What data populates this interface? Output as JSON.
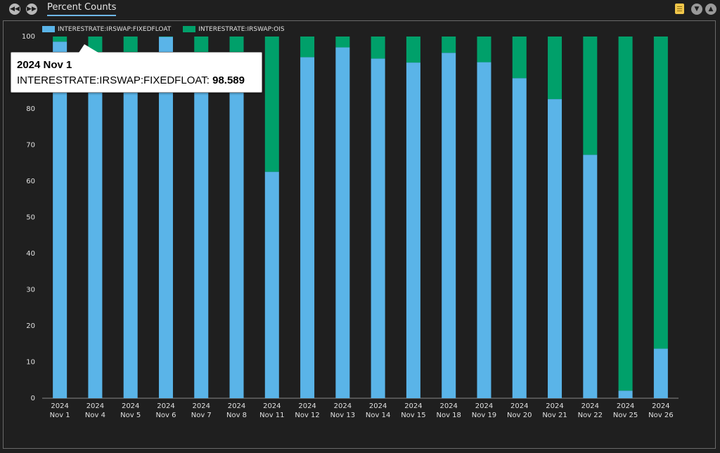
{
  "toolbar": {
    "back_icon": "rewind-icon",
    "forward_icon": "fast-forward-icon",
    "tab_label": "Percent Counts"
  },
  "tooltip": {
    "title": "2024 Nov 1",
    "series": "INTERESTRATE:IRSWAP:FIXEDFLOAT",
    "value": "98.589"
  },
  "colors": {
    "fixedfloat": "#5ab4e8",
    "ois": "#00a06a"
  },
  "chart_data": {
    "type": "bar",
    "stacked": true,
    "categories": [
      [
        "2024",
        "Nov 1"
      ],
      [
        "2024",
        "Nov 4"
      ],
      [
        "2024",
        "Nov 5"
      ],
      [
        "2024",
        "Nov 6"
      ],
      [
        "2024",
        "Nov 7"
      ],
      [
        "2024",
        "Nov 8"
      ],
      [
        "2024",
        "Nov 11"
      ],
      [
        "2024",
        "Nov 12"
      ],
      [
        "2024",
        "Nov 13"
      ],
      [
        "2024",
        "Nov 14"
      ],
      [
        "2024",
        "Nov 15"
      ],
      [
        "2024",
        "Nov 18"
      ],
      [
        "2024",
        "Nov 19"
      ],
      [
        "2024",
        "Nov 20"
      ],
      [
        "2024",
        "Nov 21"
      ],
      [
        "2024",
        "Nov 22"
      ],
      [
        "2024",
        "Nov 25"
      ],
      [
        "2024",
        "Nov 26"
      ]
    ],
    "series": [
      {
        "name": "INTERESTRATE:IRSWAP:FIXEDFLOAT",
        "values": [
          98.589,
          95.4,
          95.4,
          99.9,
          95.4,
          95.4,
          62.6,
          94.3,
          97.0,
          93.9,
          92.8,
          95.5,
          92.9,
          88.5,
          82.7,
          67.3,
          2.1,
          13.7
        ]
      },
      {
        "name": "INTERESTRATE:IRSWAP:OIS",
        "values": [
          1.411,
          4.6,
          4.6,
          0.1,
          4.6,
          4.6,
          37.4,
          5.7,
          3.0,
          6.1,
          7.2,
          4.5,
          7.1,
          11.5,
          17.3,
          32.7,
          97.9,
          86.3
        ]
      }
    ],
    "ylim": [
      0,
      100
    ],
    "yticks": [
      0,
      10,
      20,
      30,
      40,
      50,
      60,
      70,
      80,
      90,
      100
    ],
    "legend_position": "top-left",
    "grid": false
  }
}
